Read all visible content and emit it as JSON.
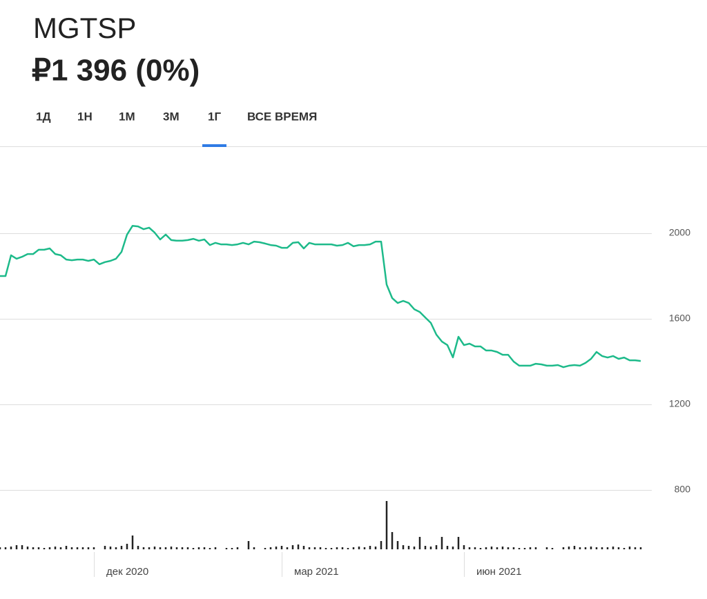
{
  "header": {
    "ticker": "MGTSP",
    "price": "₽1 396 (0%)"
  },
  "tabs": [
    "1Д",
    "1Н",
    "1М",
    "3М",
    "1Г",
    "ВСЕ ВРЕМЯ"
  ],
  "chart_data": [
    {
      "type": "line",
      "color": "#1dba8a",
      "x": [
        0,
        1,
        2,
        3,
        4,
        5,
        6,
        7,
        8,
        9,
        10,
        11,
        12,
        13,
        14,
        15,
        16,
        17,
        18,
        19,
        20,
        21,
        22,
        23,
        24,
        25,
        26,
        27,
        28,
        29,
        30,
        31,
        32,
        33,
        34,
        35,
        36,
        37,
        38,
        39,
        40,
        41,
        42,
        43,
        44,
        45,
        46,
        47,
        48,
        49,
        50,
        51,
        52,
        53,
        54,
        55,
        56,
        57,
        58,
        59,
        60,
        61,
        62,
        63,
        64,
        65,
        66,
        67,
        68,
        69,
        70,
        71,
        72,
        73,
        74,
        75,
        76,
        77,
        78,
        79,
        80,
        81,
        82,
        83,
        84,
        85,
        86,
        87,
        88,
        89,
        90,
        91,
        92,
        93,
        94,
        95,
        96,
        97,
        98,
        99,
        100,
        101,
        102,
        103,
        104,
        105,
        106,
        107,
        108,
        109,
        110,
        111,
        112,
        113,
        114,
        115,
        116
      ],
      "values": [
        1800,
        1800,
        1897,
        1881,
        1890,
        1903,
        1903,
        1923,
        1923,
        1929,
        1903,
        1897,
        1877,
        1874,
        1877,
        1877,
        1871,
        1877,
        1855,
        1865,
        1871,
        1881,
        1913,
        1994,
        2035,
        2032,
        2019,
        2026,
        2003,
        1971,
        1994,
        1968,
        1965,
        1965,
        1968,
        1974,
        1965,
        1971,
        1945,
        1955,
        1948,
        1948,
        1945,
        1948,
        1955,
        1948,
        1961,
        1958,
        1952,
        1945,
        1942,
        1932,
        1932,
        1955,
        1958,
        1929,
        1955,
        1948,
        1948,
        1948,
        1948,
        1942,
        1945,
        1955,
        1939,
        1945,
        1945,
        1948,
        1961,
        1961,
        1760,
        1697,
        1674,
        1684,
        1674,
        1645,
        1632,
        1606,
        1581,
        1526,
        1494,
        1477,
        1420,
        1516,
        1477,
        1484,
        1471,
        1471,
        1452,
        1452,
        1445,
        1432,
        1432,
        1400,
        1381,
        1381,
        1381,
        1390,
        1387,
        1381,
        1381,
        1384,
        1374,
        1381,
        1384,
        1381,
        1394,
        1413,
        1445,
        1426,
        1419,
        1426,
        1413,
        1419,
        1406,
        1406,
        1403
      ],
      "xlim": [
        0,
        117
      ],
      "ylim": [
        800,
        2400
      ],
      "yticks": [
        800,
        1200,
        1600,
        2000
      ],
      "xticks": [
        {
          "value": 17,
          "label": "дек 2020"
        },
        {
          "value": 51,
          "label": "мар 2021"
        },
        {
          "value": 84,
          "label": "июн 2021"
        }
      ],
      "grid": true
    },
    {
      "type": "bar",
      "color": "#222222",
      "x": [
        0,
        1,
        2,
        3,
        4,
        5,
        6,
        7,
        8,
        9,
        10,
        11,
        12,
        13,
        14,
        15,
        16,
        17,
        18,
        19,
        20,
        21,
        22,
        23,
        24,
        25,
        26,
        27,
        28,
        29,
        30,
        31,
        32,
        33,
        34,
        35,
        36,
        37,
        38,
        39,
        40,
        41,
        42,
        43,
        44,
        45,
        46,
        47,
        48,
        49,
        50,
        51,
        52,
        53,
        54,
        55,
        56,
        57,
        58,
        59,
        60,
        61,
        62,
        63,
        64,
        65,
        66,
        67,
        68,
        69,
        70,
        71,
        72,
        73,
        74,
        75,
        76,
        77,
        78,
        79,
        80,
        81,
        82,
        83,
        84,
        85,
        86,
        87,
        88,
        89,
        90,
        91,
        92,
        93,
        94,
        95,
        96,
        97,
        98,
        99,
        100,
        101,
        102,
        103,
        104,
        105,
        106,
        107,
        108,
        109,
        110,
        111,
        112,
        113,
        114,
        115,
        116
      ],
      "values": [
        3,
        3,
        4,
        6,
        6,
        4,
        3,
        3,
        2,
        3,
        4,
        3,
        5,
        3,
        3,
        3,
        3,
        3,
        0,
        5,
        4,
        3,
        5,
        8,
        20,
        5,
        3,
        3,
        4,
        3,
        3,
        4,
        3,
        3,
        3,
        2,
        3,
        3,
        2,
        3,
        0,
        2,
        2,
        3,
        0,
        12,
        3,
        0,
        2,
        3,
        4,
        5,
        3,
        6,
        7,
        5,
        3,
        3,
        3,
        2,
        2,
        3,
        3,
        2,
        3,
        4,
        3,
        5,
        4,
        12,
        70,
        25,
        12,
        6,
        5,
        4,
        18,
        5,
        4,
        6,
        18,
        5,
        4,
        18,
        6,
        3,
        3,
        2,
        3,
        4,
        3,
        4,
        3,
        3,
        2,
        2,
        3,
        3,
        0,
        3,
        2,
        0,
        3,
        4,
        5,
        3,
        3,
        4,
        3,
        3,
        3,
        4,
        3,
        2,
        4,
        3,
        3
      ],
      "xlim": [
        0,
        117
      ],
      "ylim": [
        0,
        100
      ]
    }
  ]
}
